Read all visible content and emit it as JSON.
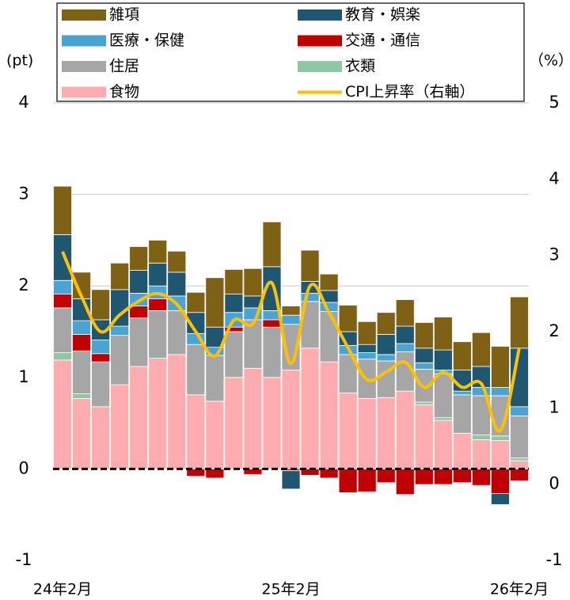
{
  "chart_data": {
    "type": "bar",
    "y_label": "(pt)",
    "y2_label": "（%）",
    "categories": [
      "24年2月",
      null,
      null,
      null,
      null,
      null,
      null,
      null,
      null,
      null,
      null,
      null,
      "25年2月",
      null,
      null,
      null,
      null,
      null,
      null,
      null,
      null,
      null,
      null,
      null,
      "26年2月"
    ],
    "ylim": [
      -1,
      4
    ],
    "yticks": [
      -1,
      0,
      1,
      2,
      3,
      4
    ],
    "y2lim": [
      -1,
      5
    ],
    "y2ticks": [
      -1,
      0,
      1,
      2,
      3,
      4,
      5
    ],
    "grid": true,
    "series": [
      {
        "name": "雑項",
        "type": "bar",
        "color": "#7f6116",
        "values": [
          0.53,
          0.29,
          0.33,
          0.29,
          0.26,
          0.25,
          0.23,
          0.22,
          0.54,
          0.27,
          0.3,
          0.49,
          0.1,
          0.34,
          0.18,
          0.29,
          0.25,
          0.24,
          0.29,
          0.28,
          0.36,
          0.31,
          0.37,
          0.45,
          0.56
        ]
      },
      {
        "name": "教育・娯楽",
        "type": "bar",
        "color": "#1f5670",
        "values": [
          0.5,
          0.24,
          0.22,
          0.4,
          0.25,
          0.25,
          0.26,
          0.23,
          0.22,
          0.2,
          0.13,
          0.48,
          -0.2,
          0.13,
          0.13,
          0.15,
          0.09,
          0.22,
          0.19,
          0.16,
          0.22,
          0.23,
          0.23,
          -0.12,
          0.64
        ]
      },
      {
        "name": "医療・保健",
        "type": "bar",
        "color": "#4ba3d2",
        "values": [
          0.15,
          0.15,
          0.15,
          0.1,
          0.14,
          0.14,
          0.16,
          0.12,
          0.09,
          0.16,
          0.13,
          0.1,
          0.1,
          0.09,
          0.1,
          0.1,
          0.07,
          0.07,
          0.09,
          0.07,
          0.04,
          0.04,
          0.09,
          0.09,
          0.1
        ]
      },
      {
        "name": "交通・通信",
        "type": "bar",
        "color": "#c00000",
        "values": [
          0.15,
          0.18,
          0.09,
          0,
          0.13,
          0.13,
          0,
          -0.08,
          -0.1,
          0.05,
          -0.06,
          0.08,
          -0.02,
          -0.07,
          -0.1,
          -0.26,
          -0.25,
          -0.15,
          -0.28,
          -0.17,
          -0.17,
          -0.15,
          -0.18,
          -0.27,
          -0.13
        ]
      },
      {
        "name": "住居",
        "type": "bar",
        "color": "#a6a6a6",
        "values": [
          0.49,
          0.47,
          0.49,
          0.54,
          0.53,
          0.52,
          0.48,
          0.55,
          0.5,
          0.5,
          0.53,
          0.55,
          0.5,
          0.51,
          0.55,
          0.42,
          0.43,
          0.4,
          0.43,
          0.36,
          0.48,
          0.42,
          0.43,
          0.44,
          0.46
        ]
      },
      {
        "name": "衣類",
        "type": "bar",
        "color": "#8fc6a4",
        "values": [
          0.08,
          0.05,
          0,
          0,
          0,
          0,
          0,
          0,
          0,
          0,
          0,
          0,
          0,
          0,
          0,
          0,
          0,
          0,
          0,
          0.03,
          0.03,
          0,
          0.05,
          0.05,
          0.03
        ]
      },
      {
        "name": "食物",
        "type": "bar",
        "color": "#ffacb0",
        "values": [
          1.19,
          0.77,
          0.68,
          0.92,
          1.12,
          1.21,
          1.25,
          0.81,
          0.74,
          1.0,
          1.1,
          1.0,
          1.08,
          1.32,
          1.17,
          0.83,
          0.77,
          0.78,
          0.85,
          0.7,
          0.53,
          0.39,
          0.32,
          0.31,
          0.09
        ]
      },
      {
        "name": "CPI上昇率（右軸）",
        "type": "line",
        "axis": "y2",
        "color": "#ffc000",
        "values": [
          3.05,
          2.46,
          2.0,
          2.22,
          2.4,
          2.5,
          2.36,
          2.0,
          1.68,
          2.15,
          2.1,
          2.64,
          1.58,
          2.6,
          2.25,
          1.79,
          1.37,
          1.47,
          1.6,
          1.27,
          1.47,
          1.27,
          1.32,
          0.7,
          1.79
        ]
      }
    ]
  }
}
